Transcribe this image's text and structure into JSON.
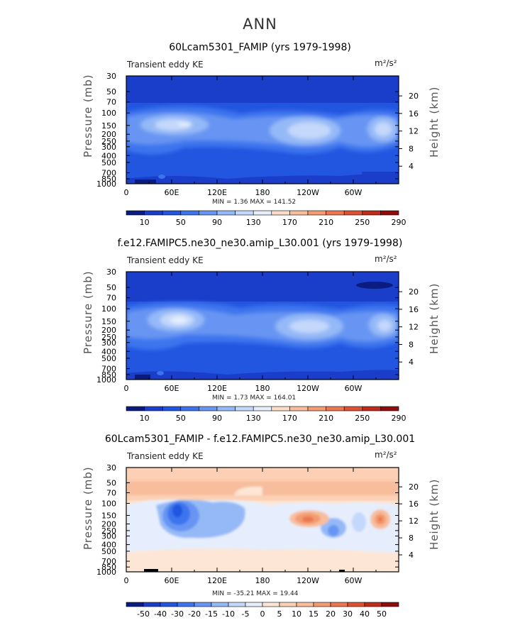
{
  "figure": {
    "title": "ANN"
  },
  "panels": [
    {
      "id": "p1",
      "title": "60Lcam5301_FAMIP (yrs 1979-1998)",
      "variable_label": "Transient eddy KE",
      "units_label": "m²/s²",
      "y_left_label": "Pressure (mb)",
      "y_right_label": "Height (km)",
      "min_max_text": "MIN =     1.36   MAX = 141.52"
    },
    {
      "id": "p2",
      "title": "f.e12.FAMIPC5.ne30_ne30.amip_L30.001 (yrs 1979-1998)",
      "variable_label": "Transient eddy KE",
      "units_label": "m²/s²",
      "y_left_label": "Pressure (mb)",
      "y_right_label": "Height (km)",
      "min_max_text": "MIN =     1.73   MAX = 164.01"
    },
    {
      "id": "p3",
      "title": "60Lcam5301_FAMIP - f.e12.FAMIPC5.ne30_ne30.amip_L30.001",
      "variable_label": "Transient eddy KE",
      "units_label": "m²/s²",
      "y_left_label": "Pressure (mb)",
      "y_right_label": "Height (km)",
      "min_max_text": "MIN = -35.21   MAX =   19.44"
    }
  ],
  "chart_data": [
    {
      "type": "heatmap",
      "title": "60Lcam5301_FAMIP (yrs 1979-1998)",
      "xlabel": "",
      "ylabel": "Pressure (mb)",
      "y2label": "Height (km)",
      "x_ticks": [
        "0",
        "60E",
        "120E",
        "180",
        "120W",
        "60W"
      ],
      "y_ticks": [
        "30",
        "50",
        "70",
        "100",
        "150",
        "200",
        "250",
        "300",
        "400",
        "500",
        "700",
        "850",
        "1000"
      ],
      "y2_ticks": [
        "4",
        "8",
        "12",
        "16",
        "20"
      ],
      "y_scale": "log",
      "ylim": [
        1000,
        30
      ],
      "xlim": [
        0,
        360
      ],
      "colorbar_ticks": [
        "10",
        "50",
        "90",
        "130",
        "170",
        "210",
        "250",
        "290"
      ],
      "colorbar_colors": [
        "#0a1c80",
        "#1a3ec9",
        "#2255e0",
        "#3d74ee",
        "#6795f3",
        "#95b9f7",
        "#c4d8fb",
        "#e6eefd",
        "#fbdcc6",
        "#f8bd9c",
        "#f39b72",
        "#eb7650",
        "#dc5232",
        "#c02c1a",
        "#8e0c0c"
      ],
      "min": 1.36,
      "max": 141.52
    },
    {
      "type": "heatmap",
      "title": "f.e12.FAMIPC5.ne30_ne30.amip_L30.001 (yrs 1979-1998)",
      "xlabel": "",
      "ylabel": "Pressure (mb)",
      "y2label": "Height (km)",
      "x_ticks": [
        "0",
        "60E",
        "120E",
        "180",
        "120W",
        "60W"
      ],
      "y_ticks": [
        "30",
        "50",
        "70",
        "100",
        "150",
        "200",
        "250",
        "300",
        "400",
        "500",
        "700",
        "850",
        "1000"
      ],
      "y2_ticks": [
        "4",
        "8",
        "12",
        "16",
        "20"
      ],
      "y_scale": "log",
      "ylim": [
        1000,
        30
      ],
      "xlim": [
        0,
        360
      ],
      "colorbar_ticks": [
        "10",
        "50",
        "90",
        "130",
        "170",
        "210",
        "250",
        "290"
      ],
      "colorbar_colors": [
        "#0a1c80",
        "#1a3ec9",
        "#2255e0",
        "#3d74ee",
        "#6795f3",
        "#95b9f7",
        "#c4d8fb",
        "#e6eefd",
        "#fbdcc6",
        "#f8bd9c",
        "#f39b72",
        "#eb7650",
        "#dc5232",
        "#c02c1a",
        "#8e0c0c"
      ],
      "min": 1.73,
      "max": 164.01
    },
    {
      "type": "heatmap",
      "title": "60Lcam5301_FAMIP - f.e12.FAMIPC5.ne30_ne30.amip_L30.001",
      "xlabel": "",
      "ylabel": "Pressure (mb)",
      "y2label": "Height (km)",
      "x_ticks": [
        "0",
        "60E",
        "120E",
        "180",
        "120W",
        "60W"
      ],
      "y_ticks": [
        "30",
        "50",
        "70",
        "100",
        "150",
        "200",
        "250",
        "300",
        "400",
        "500",
        "700",
        "850",
        "1000"
      ],
      "y2_ticks": [
        "4",
        "8",
        "12",
        "16",
        "20"
      ],
      "y_scale": "log",
      "ylim": [
        1000,
        30
      ],
      "xlim": [
        0,
        360
      ],
      "colorbar_ticks": [
        "-50",
        "-40",
        "-30",
        "-20",
        "-15",
        "-10",
        "-5",
        "0",
        "5",
        "10",
        "15",
        "20",
        "30",
        "40",
        "50"
      ],
      "colorbar_colors": [
        "#0a1c80",
        "#1a3ec9",
        "#2255e0",
        "#3d74ee",
        "#6795f3",
        "#95b9f7",
        "#c4d8fb",
        "#e6eefd",
        "#fde6d6",
        "#fbd0b4",
        "#f8bd9c",
        "#f39b72",
        "#eb7650",
        "#dc5232",
        "#c02c1a",
        "#8e0c0c"
      ],
      "min": -35.21,
      "max": 19.44
    }
  ]
}
